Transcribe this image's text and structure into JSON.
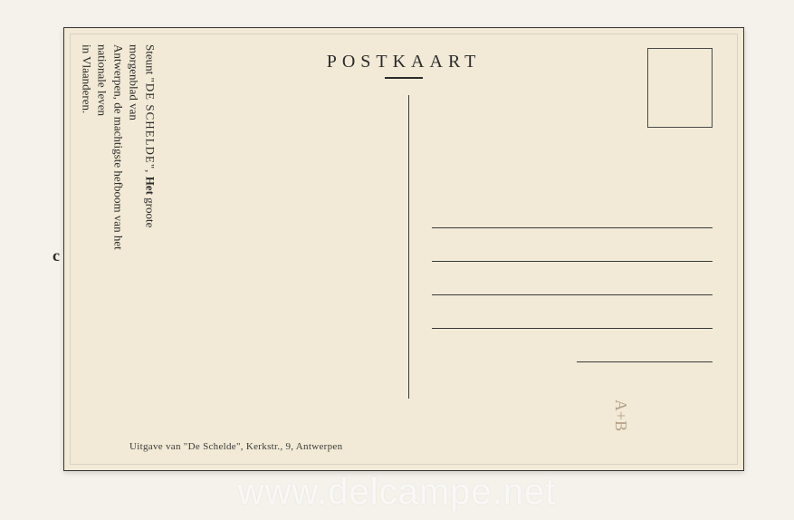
{
  "card": {
    "header": "POSTKAART",
    "vertical": {
      "line1_prefix": "Steunt ",
      "line1_title": "\"DE SCHELDE\",",
      "line1_suffix": " Het",
      "line1_rest": " groote morgenblad van",
      "line2": "Antwerpen, de machtigste hefboom van het nationale leven",
      "line3": "in Vlaanderen."
    },
    "footer": "Uitgave van \"De Schelde\", Kerkstr., 9, Antwerpen",
    "scribble": "A+B",
    "left_fragment": "c"
  },
  "watermark": "www.delcampe.net",
  "style": {
    "card_bg": "#f2ead6",
    "page_bg": "#f5f2ec",
    "ink": "#2b2b2b",
    "header_fontsize": 20,
    "header_letterspacing": 6,
    "vertical_fontsize": 13,
    "footer_fontsize": 11,
    "watermark_fontsize": 40,
    "stamp_box": {
      "w": 72,
      "h": 88
    },
    "address_line_spacing": 36,
    "address_line_count": 4
  }
}
